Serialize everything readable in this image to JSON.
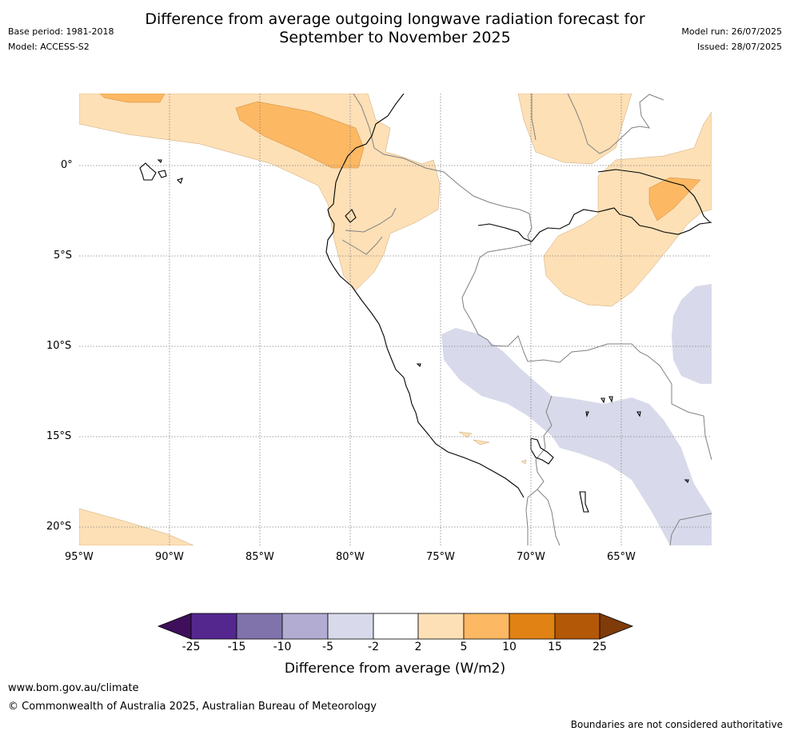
{
  "header": {
    "title_line1": "Difference from average outgoing longwave radiation forecast for",
    "title_line2": "September to November 2025",
    "base_period": "Base period: 1981-2018",
    "model": "Model: ACCESS-S2",
    "model_run": "Model run: 26/07/2025",
    "issued": "Issued: 28/07/2025"
  },
  "map": {
    "lon_labels": [
      "95°W",
      "90°W",
      "85°W",
      "80°W",
      "75°W",
      "70°W",
      "65°W"
    ],
    "lat_labels": [
      "0°",
      "5°S",
      "10°S",
      "15°S",
      "20°S"
    ],
    "lon_range": [
      -95,
      -60
    ],
    "lat_range": [
      -21,
      4
    ],
    "gridlines": true
  },
  "colorbar": {
    "ticks": [
      "-25",
      "-15",
      "-10",
      "-5",
      "-2",
      "2",
      "5",
      "10",
      "15",
      "25"
    ],
    "colors": [
      "#3f0f5c",
      "#54278f",
      "#8073ac",
      "#b2abd2",
      "#d8daeb",
      "#ffffff",
      "#fee0b6",
      "#fdb863",
      "#e08214",
      "#b35806",
      "#7f3b08"
    ],
    "title": "Difference from average (W/m2)"
  },
  "footer": {
    "url": "www.bom.gov.au/climate",
    "copyright": "© Commonwealth of Australia 2025, Australian Bureau of Meteorology",
    "disclaimer": "Boundaries are not considered authoritative"
  }
}
